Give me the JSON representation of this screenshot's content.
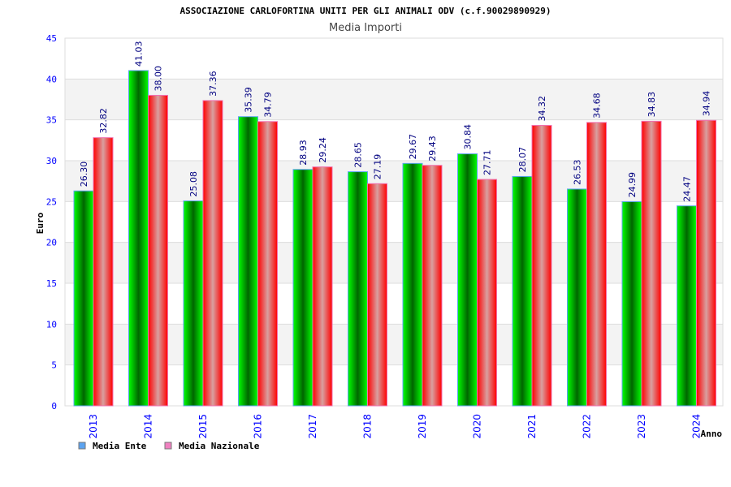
{
  "chart_data": {
    "type": "bar",
    "title": "ASSOCIAZIONE CARLOFORTINA UNITI PER GLI ANIMALI ODV (c.f.90029890929)",
    "subtitle": "Media Importi",
    "xlabel": "Anno",
    "ylabel": "Euro",
    "ylim": [
      0,
      45
    ],
    "yticks": [
      "0",
      "5",
      "10",
      "15",
      "20",
      "25",
      "30",
      "35",
      "40",
      "45"
    ],
    "grid": true,
    "legend_position": "bottom-left",
    "categories": [
      "2013",
      "2014",
      "2015",
      "2016",
      "2017",
      "2018",
      "2019",
      "2020",
      "2021",
      "2022",
      "2023",
      "2024"
    ],
    "series": [
      {
        "name": "Media Ente",
        "color": "#00aa00",
        "legend_color": "#5ba3f0",
        "values": [
          26.3,
          41.03,
          25.08,
          35.39,
          28.93,
          28.65,
          29.67,
          30.84,
          28.07,
          26.53,
          24.99,
          24.47
        ],
        "labels": [
          "26.30",
          "41.03",
          "25.08",
          "35.39",
          "28.93",
          "28.65",
          "29.67",
          "30.84",
          "28.07",
          "26.53",
          "24.99",
          "24.47"
        ]
      },
      {
        "name": "Media Nazionale",
        "color": "#ff0000",
        "legend_color": "#f080c0",
        "values": [
          32.82,
          38.0,
          37.36,
          34.79,
          29.24,
          27.19,
          29.43,
          27.71,
          34.32,
          34.68,
          34.83,
          34.94
        ],
        "labels": [
          "32.82",
          "38.00",
          "37.36",
          "34.79",
          "29.24",
          "27.19",
          "29.43",
          "27.71",
          "34.32",
          "34.68",
          "34.83",
          "34.94"
        ]
      }
    ]
  }
}
